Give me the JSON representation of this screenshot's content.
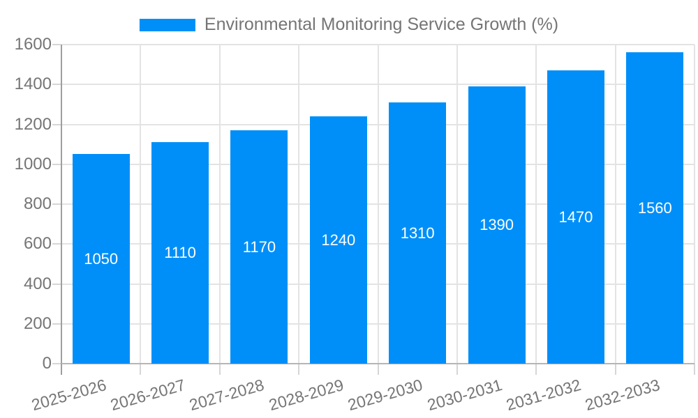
{
  "chart_data": {
    "type": "bar",
    "title": "Environmental Monitoring Service Growth (%)",
    "categories": [
      "2025-2026",
      "2026-2027",
      "2027-2028",
      "2028-2029",
      "2029-2030",
      "2030-2031",
      "2031-2032",
      "2032-2033"
    ],
    "values": [
      1050,
      1110,
      1170,
      1240,
      1310,
      1390,
      1470,
      1560
    ],
    "bar_value_labels": [
      "1050",
      "1110",
      "1170",
      "1240",
      "1310",
      "1390",
      "1470",
      "1560"
    ],
    "xlabel": "",
    "ylabel": "",
    "ylim": [
      0,
      1600
    ],
    "ytick_step": 200,
    "yticks": [
      0,
      200,
      400,
      600,
      800,
      1000,
      1200,
      1400,
      1600
    ],
    "grid": true,
    "legend_position": "top",
    "bar_labels_inside": true,
    "colors": {
      "bar": "#008FF8",
      "bar_label": "#FFFFFF",
      "axis_text": "#757575",
      "gridline": "#E3E3E3",
      "tick": "#D6D6D6",
      "y_axis_line": "#9E9E9E",
      "x_axis_line": "#B5B5B5",
      "background": "#FFFFFF"
    }
  }
}
